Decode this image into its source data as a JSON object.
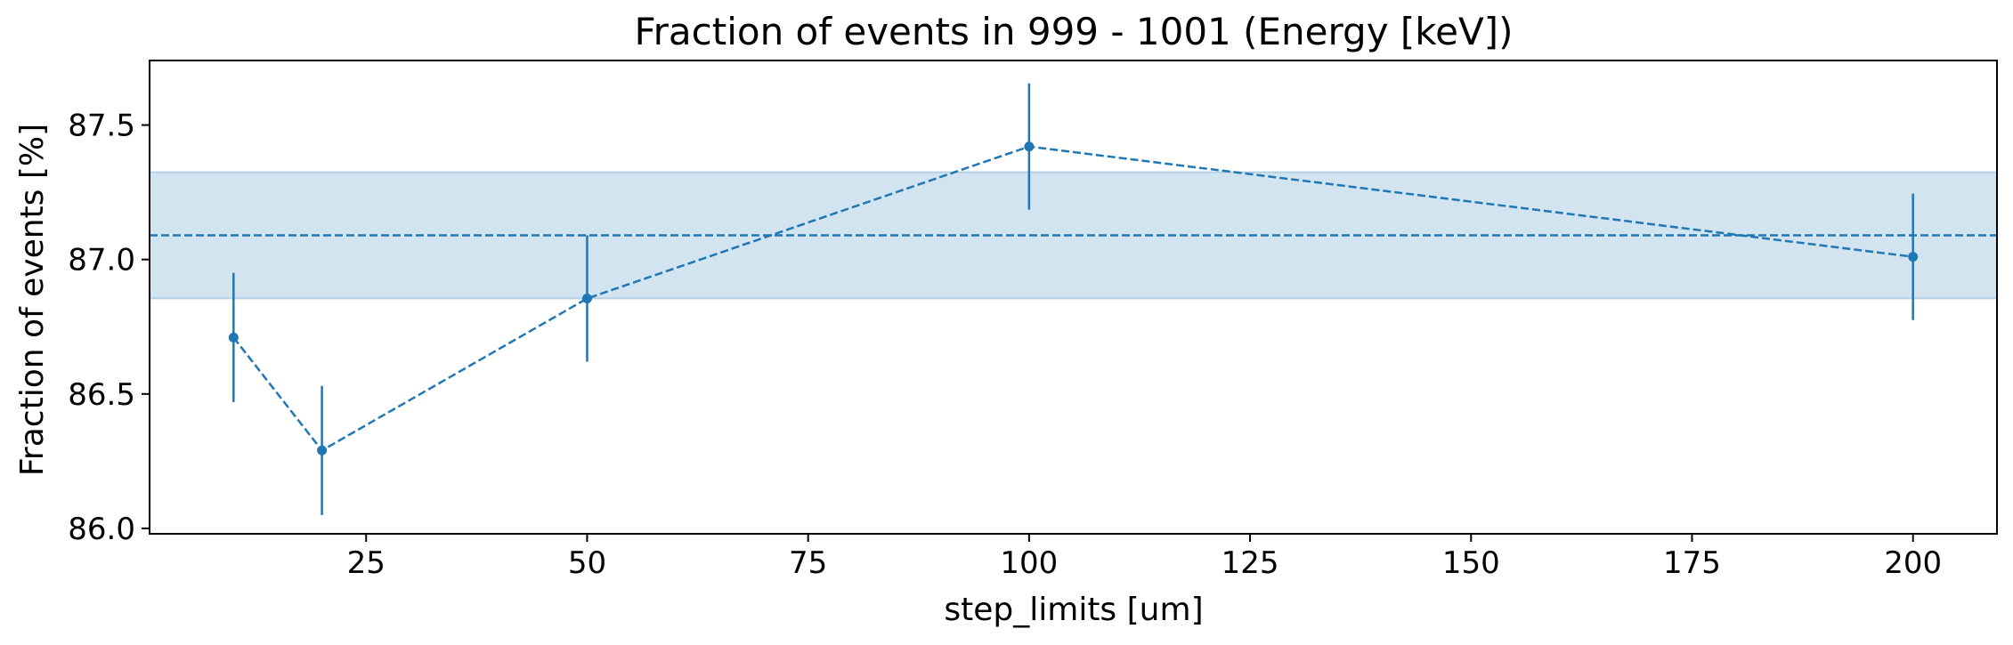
{
  "chart_data": {
    "type": "line",
    "title": "Fraction of events in 999 - 1001 (Energy [keV])",
    "xlabel": "step_limits [um]",
    "ylabel": "Fraction of events [%]",
    "xlim": [
      0.5,
      209.5
    ],
    "ylim": [
      85.98,
      87.74
    ],
    "xticks": [
      25,
      50,
      75,
      100,
      125,
      150,
      175,
      200
    ],
    "yticks": [
      86.0,
      86.5,
      87.0,
      87.5
    ],
    "ytick_labels": [
      "86.0",
      "86.5",
      "87.0",
      "87.5"
    ],
    "grid": false,
    "series": [
      {
        "x": [
          10,
          20,
          50,
          100,
          200
        ],
        "y": [
          86.71,
          86.29,
          86.855,
          87.42,
          87.01
        ],
        "yerr": [
          0.24,
          0.24,
          0.235,
          0.235,
          0.235
        ],
        "linestyle": "dashed",
        "marker": "circle"
      }
    ],
    "mean_line": {
      "y": 87.09
    },
    "band": {
      "ymin": 86.855,
      "ymax": 87.325
    },
    "colors": {
      "line": "#1f77b4",
      "band": "#1f77b4"
    }
  }
}
